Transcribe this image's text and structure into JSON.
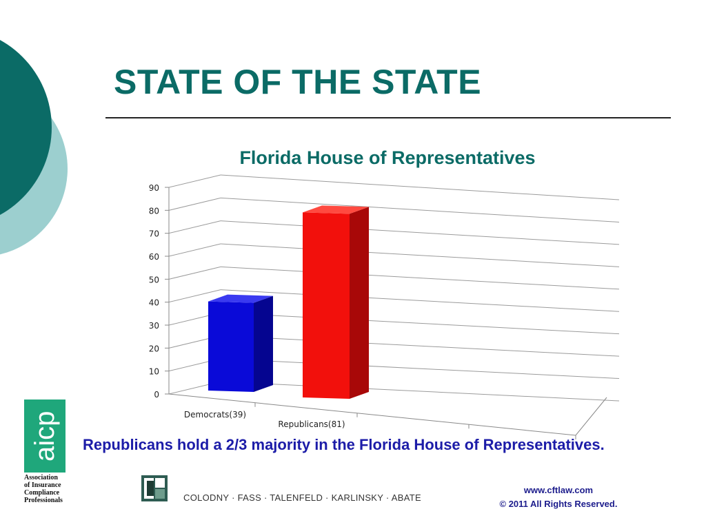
{
  "slide": {
    "title": "STATE OF THE STATE",
    "caption": "Republicans hold a 2/3 majority in the Florida House of Representatives."
  },
  "colors": {
    "teal_dark": "#0b6b66",
    "teal_light": "#9ccfcf",
    "democrats": "#0a0ad8",
    "republicans": "#f2100c",
    "caption": "#1c1ca8",
    "aicp_green": "#1fa77b"
  },
  "chart_data": {
    "type": "bar",
    "title": "Florida House of Representatives",
    "categories": [
      "Democrats(39)",
      "Republicans(81)"
    ],
    "values": [
      39,
      81
    ],
    "yticks": [
      0,
      10,
      20,
      30,
      40,
      50,
      60,
      70,
      80,
      90
    ],
    "ylim": [
      0,
      90
    ],
    "grid": true,
    "legend": "none",
    "bar_colors": [
      "#0a0ad8",
      "#f2100c"
    ]
  },
  "logos": {
    "aicp_mark": "aicp",
    "aicp_name_lines": [
      "Association",
      "of Insurance",
      "Compliance",
      "Professionals"
    ],
    "firm_name": "COLODNY · FASS · TALENFELD · KARLINSKY · ABATE"
  },
  "footer": {
    "url": "www.cftlaw.com",
    "copyright": "© 2011 All Rights Reserved."
  }
}
